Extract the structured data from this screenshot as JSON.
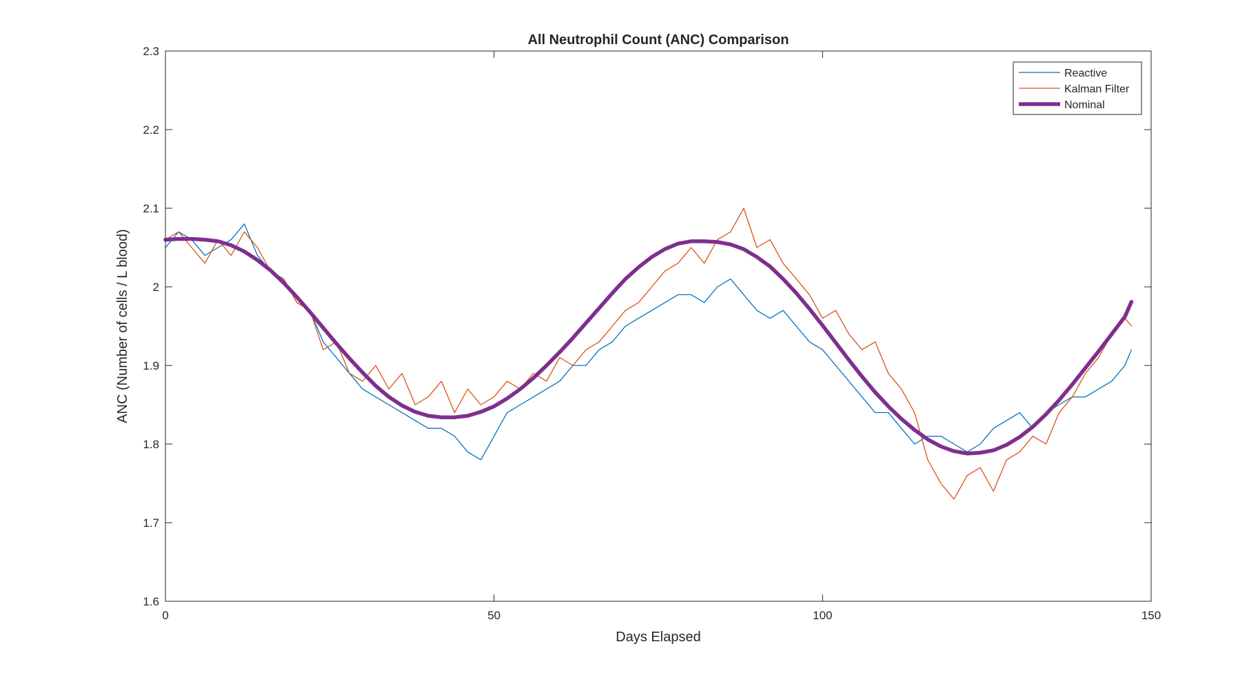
{
  "chart_data": {
    "type": "line",
    "title": "All Neutrophil Count (ANC) Comparison",
    "xlabel": "Days Elapsed",
    "ylabel": "ANC (Number of cells / L blood)",
    "xlim": [
      0,
      150
    ],
    "ylim": [
      1.6,
      2.3
    ],
    "xticks": [
      0,
      50,
      100,
      150
    ],
    "yticks": [
      1.6,
      1.7,
      1.8,
      1.9,
      2.0,
      2.1,
      2.2,
      2.3
    ],
    "xtick_labels": [
      "0",
      "50",
      "100",
      "150"
    ],
    "ytick_labels": [
      "1.6",
      "1.7",
      "1.8",
      "1.9",
      "2",
      "2.1",
      "2.2",
      "2.3"
    ],
    "grid": false,
    "legend_position": "top-right",
    "series": [
      {
        "name": "Reactive",
        "color": "#0072BD",
        "style": "thin",
        "x": [
          0,
          2,
          4,
          6,
          8,
          10,
          12,
          14,
          16,
          18,
          20,
          22,
          24,
          26,
          28,
          30,
          32,
          34,
          36,
          38,
          40,
          42,
          44,
          46,
          48,
          50,
          52,
          54,
          56,
          58,
          60,
          62,
          64,
          66,
          68,
          70,
          72,
          74,
          76,
          78,
          80,
          82,
          84,
          86,
          88,
          90,
          92,
          94,
          96,
          98,
          100,
          102,
          104,
          106,
          108,
          110,
          112,
          114,
          116,
          118,
          120,
          122,
          124,
          126,
          128,
          130,
          132,
          134,
          136,
          138,
          140,
          142,
          144,
          146,
          147
        ],
        "y": [
          2.05,
          2.07,
          2.06,
          2.04,
          2.05,
          2.06,
          2.08,
          2.04,
          2.02,
          2.01,
          1.98,
          1.97,
          1.93,
          1.91,
          1.89,
          1.87,
          1.86,
          1.85,
          1.84,
          1.83,
          1.82,
          1.82,
          1.81,
          1.79,
          1.78,
          1.81,
          1.84,
          1.85,
          1.86,
          1.87,
          1.88,
          1.9,
          1.9,
          1.92,
          1.93,
          1.95,
          1.96,
          1.97,
          1.98,
          1.99,
          1.99,
          1.98,
          2.0,
          2.01,
          1.99,
          1.97,
          1.96,
          1.97,
          1.95,
          1.93,
          1.92,
          1.9,
          1.88,
          1.86,
          1.84,
          1.84,
          1.82,
          1.8,
          1.81,
          1.81,
          1.8,
          1.79,
          1.8,
          1.82,
          1.83,
          1.84,
          1.82,
          1.84,
          1.85,
          1.86,
          1.86,
          1.87,
          1.88,
          1.9,
          1.92
        ]
      },
      {
        "name": "Kalman Filter",
        "color": "#D95319",
        "style": "thin",
        "x": [
          0,
          2,
          4,
          6,
          8,
          10,
          12,
          14,
          16,
          18,
          20,
          22,
          24,
          26,
          28,
          30,
          32,
          34,
          36,
          38,
          40,
          42,
          44,
          46,
          48,
          50,
          52,
          54,
          56,
          58,
          60,
          62,
          64,
          66,
          68,
          70,
          72,
          74,
          76,
          78,
          80,
          82,
          84,
          86,
          88,
          90,
          92,
          94,
          96,
          98,
          100,
          102,
          104,
          106,
          108,
          110,
          112,
          114,
          116,
          118,
          120,
          122,
          124,
          126,
          128,
          130,
          132,
          134,
          136,
          138,
          140,
          142,
          144,
          146,
          147
        ],
        "y": [
          2.06,
          2.07,
          2.05,
          2.03,
          2.06,
          2.04,
          2.07,
          2.05,
          2.02,
          2.01,
          1.98,
          1.97,
          1.92,
          1.93,
          1.89,
          1.88,
          1.9,
          1.87,
          1.89,
          1.85,
          1.86,
          1.88,
          1.84,
          1.87,
          1.85,
          1.86,
          1.88,
          1.87,
          1.89,
          1.88,
          1.91,
          1.9,
          1.92,
          1.93,
          1.95,
          1.97,
          1.98,
          2.0,
          2.02,
          2.03,
          2.05,
          2.03,
          2.06,
          2.07,
          2.1,
          2.05,
          2.06,
          2.03,
          2.01,
          1.99,
          1.96,
          1.97,
          1.94,
          1.92,
          1.93,
          1.89,
          1.87,
          1.84,
          1.78,
          1.75,
          1.73,
          1.76,
          1.77,
          1.74,
          1.78,
          1.79,
          1.81,
          1.8,
          1.84,
          1.86,
          1.89,
          1.91,
          1.94,
          1.96,
          1.95
        ]
      },
      {
        "name": "Nominal",
        "color": "#7E2F8E",
        "style": "thick",
        "x": [
          0,
          2,
          4,
          6,
          8,
          10,
          12,
          14,
          16,
          18,
          20,
          22,
          24,
          26,
          28,
          30,
          32,
          34,
          36,
          38,
          40,
          42,
          44,
          46,
          48,
          50,
          52,
          54,
          56,
          58,
          60,
          62,
          64,
          66,
          68,
          70,
          72,
          74,
          76,
          78,
          80,
          82,
          84,
          86,
          88,
          90,
          92,
          94,
          96,
          98,
          100,
          102,
          104,
          106,
          108,
          110,
          112,
          114,
          116,
          118,
          120,
          122,
          124,
          126,
          128,
          130,
          132,
          134,
          136,
          138,
          140,
          142,
          144,
          146,
          147
        ],
        "y": [
          2.06,
          2.061,
          2.061,
          2.06,
          2.058,
          2.053,
          2.045,
          2.034,
          2.021,
          2.005,
          1.987,
          1.968,
          1.948,
          1.928,
          1.909,
          1.891,
          1.874,
          1.86,
          1.849,
          1.841,
          1.836,
          1.834,
          1.834,
          1.836,
          1.841,
          1.848,
          1.858,
          1.87,
          1.884,
          1.9,
          1.917,
          1.935,
          1.954,
          1.973,
          1.992,
          2.01,
          2.025,
          2.038,
          2.048,
          2.055,
          2.058,
          2.058,
          2.057,
          2.054,
          2.048,
          2.038,
          2.026,
          2.01,
          1.992,
          1.972,
          1.951,
          1.929,
          1.907,
          1.886,
          1.866,
          1.848,
          1.832,
          1.818,
          1.806,
          1.797,
          1.791,
          1.788,
          1.789,
          1.792,
          1.799,
          1.809,
          1.822,
          1.838,
          1.856,
          1.876,
          1.897,
          1.918,
          1.94,
          1.962,
          1.981
        ]
      }
    ]
  }
}
